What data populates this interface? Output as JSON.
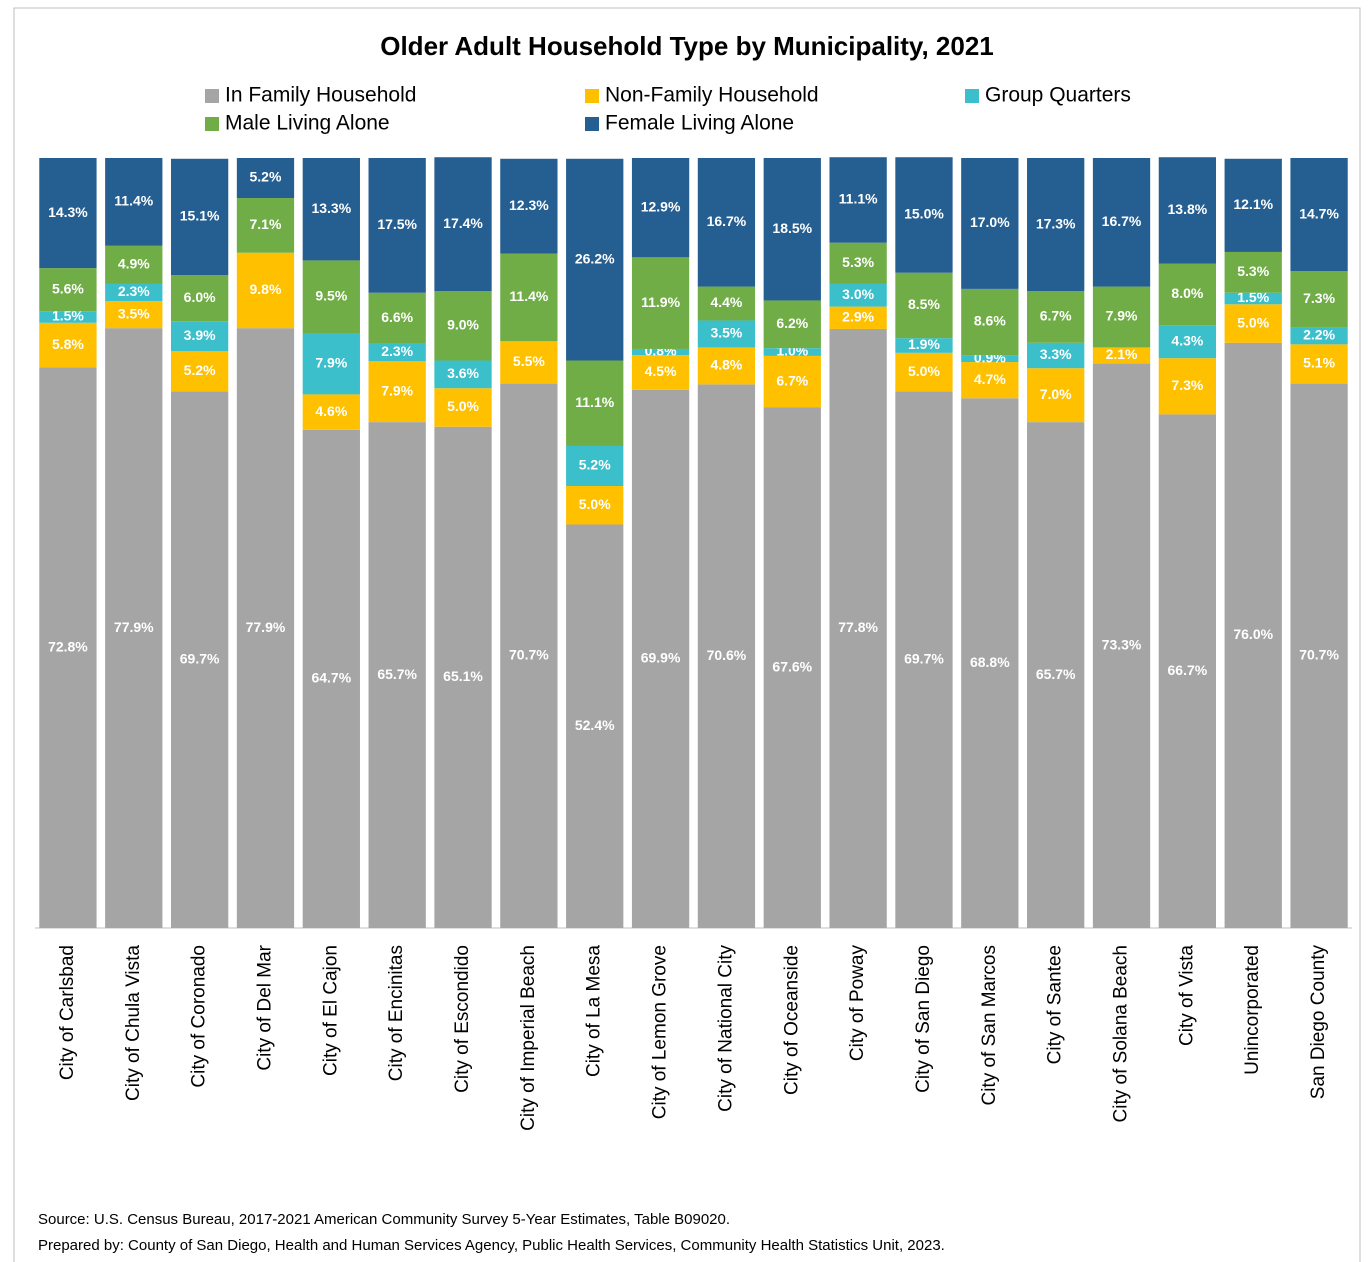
{
  "chart_data": {
    "type": "stacked_bar",
    "title": "Older Adult Household Type by Municipality, 2021",
    "categories": [
      "City of Carlsbad",
      "City of Chula Vista",
      "City of Coronado",
      "City of Del Mar",
      "City of El Cajon",
      "City of Encinitas",
      "City of Escondido",
      "City of Imperial Beach",
      "City of La Mesa",
      "City of Lemon Grove",
      "City of National City",
      "City of Oceanside",
      "City of Poway",
      "City of San Diego",
      "City of San Marcos",
      "City of Santee",
      "City of Solana Beach",
      "City of Vista",
      "Unincorporated",
      "San Diego County"
    ],
    "series": [
      {
        "name": "In Family Household",
        "color": "#a5a5a5",
        "values": [
          72.8,
          77.9,
          69.7,
          77.9,
          64.7,
          65.7,
          65.1,
          70.7,
          52.4,
          69.9,
          70.6,
          67.6,
          77.8,
          69.7,
          68.8,
          65.7,
          73.3,
          66.7,
          76.0,
          70.7
        ],
        "value_labels": [
          "72.8%",
          "77.9%",
          "69.7%",
          "77.9%",
          "64.7%",
          "65.7%",
          "65.1%",
          "70.7%",
          "52.4%",
          "69.9%",
          "70.6%",
          "67.6%",
          "77.8%",
          "69.7%",
          "68.8%",
          "65.7%",
          "73.3%",
          "66.7%",
          "76.0%",
          "70.7%"
        ]
      },
      {
        "name": "Non-Family Household",
        "color": "#ffc000",
        "values": [
          5.8,
          3.5,
          5.2,
          9.8,
          4.6,
          7.9,
          5.0,
          5.5,
          5.0,
          4.5,
          4.8,
          6.7,
          2.9,
          5.0,
          4.7,
          7.0,
          2.1,
          7.3,
          5.0,
          5.1
        ],
        "value_labels": [
          "5.8%",
          "3.5%",
          "5.2%",
          "9.8%",
          "4.6%",
          "7.9%",
          "5.0%",
          "5.5%",
          "5.0%",
          "4.5%",
          "4.8%",
          "6.7%",
          "2.9%",
          "5.0%",
          "4.7%",
          "7.0%",
          "2.1%",
          "7.3%",
          "5.0%",
          "5.1%"
        ]
      },
      {
        "name": "Group Quarters",
        "color": "#3bbfcb",
        "values": [
          1.5,
          2.3,
          3.9,
          0,
          7.9,
          2.3,
          3.6,
          0,
          5.2,
          0.8,
          3.5,
          1.0,
          3.0,
          1.9,
          0.9,
          3.3,
          0,
          4.3,
          1.5,
          2.2
        ],
        "value_labels": [
          "1.5%",
          "2.3%",
          "3.9%",
          null,
          "7.9%",
          "2.3%",
          "3.6%",
          null,
          "5.2%",
          "0.8%",
          "3.5%",
          "1.0%",
          "3.0%",
          "1.9%",
          "0.9%",
          "3.3%",
          null,
          "4.3%",
          "1.5%",
          "2.2%"
        ]
      },
      {
        "name": "Male Living Alone",
        "color": "#70ad47",
        "values": [
          5.6,
          4.9,
          6.0,
          7.1,
          9.5,
          6.6,
          9.0,
          11.4,
          11.1,
          11.9,
          4.4,
          6.2,
          5.3,
          8.5,
          8.6,
          6.7,
          7.9,
          8.0,
          5.3,
          7.3
        ],
        "value_labels": [
          "5.6%",
          "4.9%",
          "6.0%",
          "7.1%",
          "9.5%",
          "6.6%",
          "9.0%",
          "11.4%",
          "11.1%",
          "11.9%",
          "4.4%",
          "6.2%",
          "5.3%",
          "8.5%",
          "8.6%",
          "6.7%",
          "7.9%",
          "8.0%",
          "5.3%",
          "7.3%"
        ]
      },
      {
        "name": "Female Living Alone",
        "color": "#255e91",
        "values": [
          14.3,
          11.4,
          15.1,
          5.2,
          13.3,
          17.5,
          17.4,
          12.3,
          26.2,
          12.9,
          16.7,
          18.5,
          11.1,
          15.0,
          17.0,
          17.3,
          16.7,
          13.8,
          12.1,
          14.7
        ],
        "value_labels": [
          "14.3%",
          "11.4%",
          "15.1%",
          "5.2%",
          "13.3%",
          "17.5%",
          "17.4%",
          "12.3%",
          "26.2%",
          "12.9%",
          "16.7%",
          "18.5%",
          "11.1%",
          "15.0%",
          "17.0%",
          "17.3%",
          "16.7%",
          "13.8%",
          "12.1%",
          "14.7%"
        ]
      }
    ],
    "ylim": [
      0,
      100
    ],
    "legend": "top",
    "source": "Source: U.S. Census Bureau, 2017-2021 American Community Survey 5-Year Estimates, Table B09020.",
    "prepared_by": "Prepared by: County of San Diego, Health and Human Services Agency, Public Health Services, Community Health Statistics Unit, 2023."
  }
}
